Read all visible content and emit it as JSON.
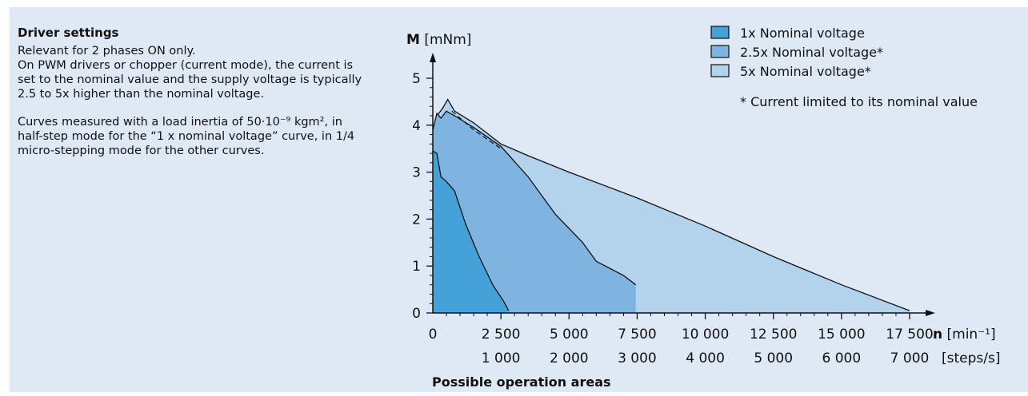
{
  "notes": {
    "heading": "Driver settings",
    "para1": "Relevant for 2 phases ON only.\nOn PWM drivers or chopper (current mode), the current is set to the nominal value and the supply voltage is typically 2.5 to 5x higher than the nominal voltage.",
    "para2": "Curves measured with a load inertia of 50·10⁻⁹ kgm², in half-step mode for the “1 x nominal voltage” curve, in 1/4 micro-stepping mode for the other curves."
  },
  "chart_data": {
    "type": "area",
    "ylabel": "M [mNm]",
    "xlabel": "n [min⁻¹]",
    "x2label": "[steps/s]",
    "caption": "Possible operation areas",
    "ylim": [
      0,
      5
    ],
    "xlim": [
      0,
      17500
    ],
    "y_ticks": [
      "0",
      "1",
      "2",
      "3",
      "4",
      "5"
    ],
    "x_ticks": [
      {
        "x": 0,
        "label": "0",
        "label2": ""
      },
      {
        "x": 2500,
        "label": "2 500",
        "label2": "1 000"
      },
      {
        "x": 5000,
        "label": "5 000",
        "label2": "2 000"
      },
      {
        "x": 7500,
        "label": "7 500",
        "label2": "3 000"
      },
      {
        "x": 10000,
        "label": "10 000",
        "label2": "4 000"
      },
      {
        "x": 12500,
        "label": "12 500",
        "label2": "5 000"
      },
      {
        "x": 15000,
        "label": "15 000",
        "label2": "6 000"
      },
      {
        "x": 17500,
        "label": "17 500",
        "label2": "7 000"
      }
    ],
    "footnote": "* Current limited to its nominal value",
    "series": [
      {
        "name": "5x Nominal voltage*",
        "color": "#b3d2eb",
        "points": [
          [
            0,
            3.9
          ],
          [
            150,
            4.2
          ],
          [
            350,
            4.35
          ],
          [
            550,
            4.55
          ],
          [
            800,
            4.3
          ],
          [
            1500,
            4.05
          ],
          [
            2500,
            3.6
          ],
          [
            3500,
            3.35
          ],
          [
            5000,
            3.0
          ],
          [
            7500,
            2.45
          ],
          [
            10000,
            1.85
          ],
          [
            12500,
            1.2
          ],
          [
            15000,
            0.6
          ],
          [
            17500,
            0.05
          ]
        ]
      },
      {
        "name": "2.5x Nominal voltage*",
        "color": "#80b4e0",
        "points": [
          [
            0,
            3.9
          ],
          [
            150,
            4.25
          ],
          [
            300,
            4.15
          ],
          [
            500,
            4.3
          ],
          [
            800,
            4.2
          ],
          [
            1500,
            3.95
          ],
          [
            2500,
            3.55
          ],
          [
            3500,
            2.9
          ],
          [
            4500,
            2.1
          ],
          [
            5500,
            1.5
          ],
          [
            6000,
            1.1
          ],
          [
            7000,
            0.8
          ],
          [
            7450,
            0.6
          ]
        ]
      },
      {
        "name": "1x Nominal voltage",
        "color": "#44a2d8",
        "points": [
          [
            0,
            3.45
          ],
          [
            150,
            3.4
          ],
          [
            300,
            2.9
          ],
          [
            500,
            2.8
          ],
          [
            800,
            2.6
          ],
          [
            1200,
            1.9
          ],
          [
            1700,
            1.2
          ],
          [
            2200,
            0.6
          ],
          [
            2600,
            0.25
          ],
          [
            2780,
            0.05
          ]
        ]
      }
    ],
    "dashed_curve": [
      [
        700,
        4.3
      ],
      [
        1500,
        3.9
      ],
      [
        2500,
        3.5
      ]
    ]
  }
}
